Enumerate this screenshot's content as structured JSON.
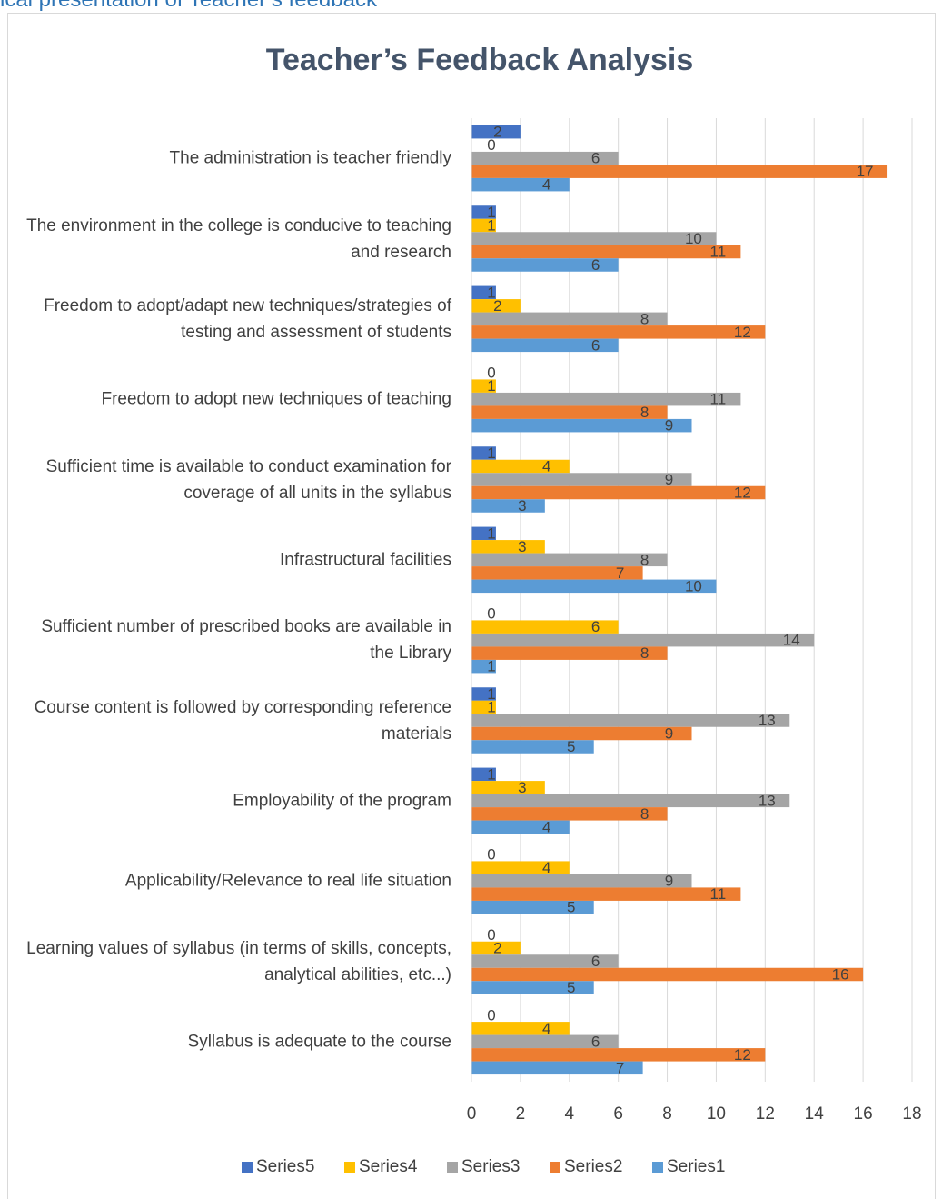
{
  "caption": "ical presentation of Teacher’s feedback",
  "chart_data": {
    "type": "hbar",
    "title": "Teacher’s Feedback Analysis",
    "categories": [
      "The administration is teacher friendly",
      "The environment in the college is conducive to teaching and research",
      "Freedom to adopt/adapt new techniques/strategies of testing and assessment of students",
      "Freedom to adopt new techniques of teaching",
      "Sufficient time is available to conduct examination for coverage of all units in the syllabus",
      "Infrastructural facilities",
      "Sufficient number of prescribed books are available in the Library",
      "Course content is followed by corresponding reference materials",
      "Employability of the program",
      "Applicability/Relevance to real life situation",
      "Learning values of syllabus (in terms of skills, concepts, analytical abilities, etc...)",
      "Syllabus is adequate to the course"
    ],
    "series": [
      {
        "name": "Series5",
        "color": "#4472c4",
        "values": [
          2,
          1,
          1,
          0,
          1,
          1,
          0,
          1,
          1,
          0,
          0,
          0
        ]
      },
      {
        "name": "Series4",
        "color": "#ffc000",
        "values": [
          0,
          1,
          2,
          1,
          4,
          3,
          6,
          1,
          3,
          4,
          2,
          4
        ]
      },
      {
        "name": "Series3",
        "color": "#a5a5a5",
        "values": [
          6,
          10,
          8,
          11,
          9,
          8,
          14,
          13,
          13,
          9,
          6,
          6
        ]
      },
      {
        "name": "Series2",
        "color": "#ed7d31",
        "values": [
          17,
          11,
          12,
          8,
          12,
          7,
          8,
          9,
          8,
          11,
          16,
          12
        ]
      },
      {
        "name": "Series1",
        "color": "#5b9bd5",
        "values": [
          4,
          6,
          6,
          9,
          3,
          10,
          1,
          5,
          4,
          5,
          5,
          7
        ]
      }
    ],
    "xlim": [
      0,
      18
    ],
    "xticks": [
      0,
      2,
      4,
      6,
      8,
      10,
      12,
      14,
      16,
      18
    ],
    "grid": true,
    "legend": "bottom"
  }
}
